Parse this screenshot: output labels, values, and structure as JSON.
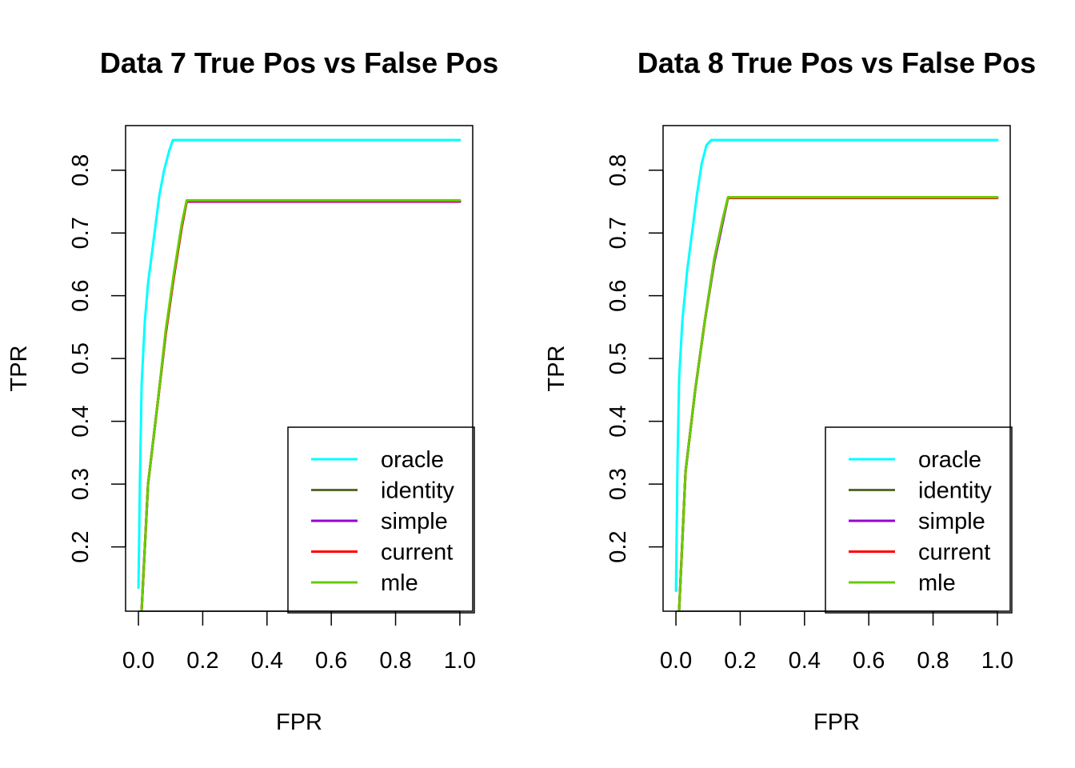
{
  "chart_data": [
    {
      "type": "line",
      "title": "Data 7 True Pos vs False Pos",
      "xlabel": "FPR",
      "ylabel": "TPR",
      "xlim": [
        -0.04,
        1.04
      ],
      "ylim": [
        0.0975,
        0.871
      ],
      "xticks": [
        "0.0",
        "0.2",
        "0.4",
        "0.6",
        "0.8",
        "1.0"
      ],
      "xtick_values": [
        0.0,
        0.2,
        0.4,
        0.6,
        0.8,
        1.0
      ],
      "yticks": [
        "0.2",
        "0.3",
        "0.4",
        "0.5",
        "0.6",
        "0.7",
        "0.8"
      ],
      "ytick_values": [
        0.2,
        0.3,
        0.4,
        0.5,
        0.6,
        0.7,
        0.8
      ],
      "legend_position": "bottom-right",
      "series": [
        {
          "name": "oracle",
          "color": "#00FFFF",
          "x": [
            0.0,
            0.005,
            0.01,
            0.02,
            0.03,
            0.05,
            0.065,
            0.08,
            0.095,
            0.107,
            1.0
          ],
          "y": [
            0.135,
            0.32,
            0.46,
            0.56,
            0.62,
            0.7,
            0.76,
            0.8,
            0.83,
            0.848,
            0.848
          ]
        },
        {
          "name": "identity",
          "color": "#556B2F",
          "x": [
            0.01,
            0.03,
            0.06,
            0.085,
            0.11,
            0.135,
            0.15,
            1.0
          ],
          "y": [
            0.1,
            0.3,
            0.43,
            0.54,
            0.63,
            0.71,
            0.75,
            0.75
          ]
        },
        {
          "name": "simple",
          "color": "#9400D3",
          "x": [
            0.01,
            0.03,
            0.06,
            0.085,
            0.11,
            0.135,
            0.15,
            1.0
          ],
          "y": [
            0.1,
            0.3,
            0.43,
            0.54,
            0.63,
            0.71,
            0.75,
            0.75
          ]
        },
        {
          "name": "current",
          "color": "#FF0000",
          "x": [
            0.01,
            0.03,
            0.06,
            0.085,
            0.11,
            0.135,
            0.15,
            1.0
          ],
          "y": [
            0.1,
            0.3,
            0.43,
            0.54,
            0.63,
            0.71,
            0.751,
            0.751
          ]
        },
        {
          "name": "mle",
          "color": "#66CC00",
          "x": [
            0.01,
            0.03,
            0.06,
            0.085,
            0.11,
            0.135,
            0.15,
            1.0
          ],
          "y": [
            0.1,
            0.3,
            0.43,
            0.545,
            0.635,
            0.715,
            0.752,
            0.752
          ]
        }
      ]
    },
    {
      "type": "line",
      "title": "Data 8 True Pos vs False Pos",
      "xlabel": "FPR",
      "ylabel": "TPR",
      "xlim": [
        -0.04,
        1.04
      ],
      "ylim": [
        0.0975,
        0.871
      ],
      "xticks": [
        "0.0",
        "0.2",
        "0.4",
        "0.6",
        "0.8",
        "1.0"
      ],
      "xtick_values": [
        0.0,
        0.2,
        0.4,
        0.6,
        0.8,
        1.0
      ],
      "yticks": [
        "0.2",
        "0.3",
        "0.4",
        "0.5",
        "0.6",
        "0.7",
        "0.8"
      ],
      "ytick_values": [
        0.2,
        0.3,
        0.4,
        0.5,
        0.6,
        0.7,
        0.8
      ],
      "legend_position": "bottom-right",
      "series": [
        {
          "name": "oracle",
          "color": "#00FFFF",
          "x": [
            0.0,
            0.005,
            0.01,
            0.02,
            0.035,
            0.05,
            0.065,
            0.08,
            0.095,
            0.11,
            1.0
          ],
          "y": [
            0.13,
            0.34,
            0.47,
            0.56,
            0.64,
            0.7,
            0.76,
            0.81,
            0.84,
            0.848,
            0.848
          ]
        },
        {
          "name": "identity",
          "color": "#556B2F",
          "x": [
            0.01,
            0.03,
            0.06,
            0.09,
            0.12,
            0.145,
            0.162,
            1.0
          ],
          "y": [
            0.1,
            0.32,
            0.45,
            0.56,
            0.66,
            0.72,
            0.756,
            0.756
          ]
        },
        {
          "name": "simple",
          "color": "#9400D3",
          "x": [
            0.01,
            0.03,
            0.06,
            0.09,
            0.12,
            0.145,
            0.162,
            1.0
          ],
          "y": [
            0.1,
            0.32,
            0.45,
            0.56,
            0.655,
            0.715,
            0.756,
            0.756
          ]
        },
        {
          "name": "current",
          "color": "#FF0000",
          "x": [
            0.01,
            0.03,
            0.06,
            0.09,
            0.12,
            0.145,
            0.162,
            1.0
          ],
          "y": [
            0.1,
            0.32,
            0.45,
            0.56,
            0.66,
            0.72,
            0.756,
            0.756
          ]
        },
        {
          "name": "mle",
          "color": "#66CC00",
          "x": [
            0.01,
            0.03,
            0.06,
            0.09,
            0.12,
            0.145,
            0.162,
            1.0
          ],
          "y": [
            0.1,
            0.32,
            0.45,
            0.56,
            0.66,
            0.72,
            0.757,
            0.757
          ]
        }
      ]
    }
  ]
}
